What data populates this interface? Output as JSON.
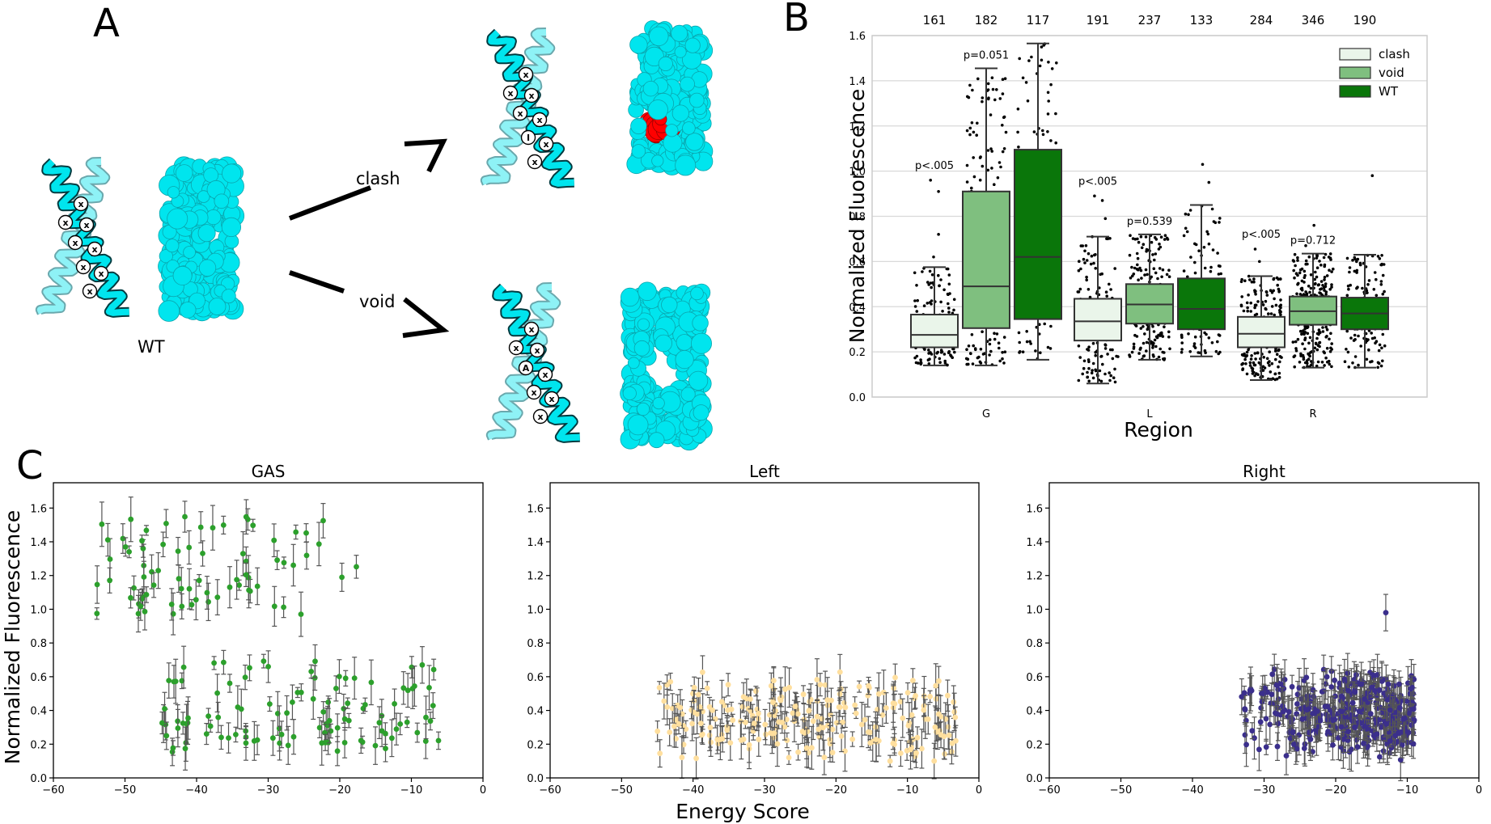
{
  "panel_letters": [
    "A",
    "B",
    "C"
  ],
  "panel_a": {
    "wt_label": "WT",
    "clash_label": "clash",
    "void_label": "void",
    "marker_text": "x",
    "clash_mutation_text": "I",
    "void_mutation_text": "A",
    "colors": {
      "helix": "#00e5ee",
      "helix_light": "#8ef2f6",
      "mutation": "#ff0000"
    }
  },
  "chart_data": [
    {
      "id": "B",
      "type": "box",
      "xlabel": "Region",
      "ylabel": "Normalized Fluorescence",
      "ylim": [
        0,
        1.6
      ],
      "yticks": [
        "0.0",
        "0.2",
        "0.4",
        "0.6",
        "0.8",
        "1.0",
        "1.2",
        "1.4",
        "1.6"
      ],
      "grid": true,
      "legend_position": "top-right",
      "categories": [
        "G",
        "L",
        "R"
      ],
      "series": [
        {
          "name": "clash",
          "color": "#eaf5ea"
        },
        {
          "name": "void",
          "color": "#7fbf7f"
        },
        {
          "name": "WT",
          "color": "#0a760a"
        }
      ],
      "counts": [
        [
          "161",
          "182",
          "117"
        ],
        [
          "191",
          "237",
          "133"
        ],
        [
          "284",
          "346",
          "190"
        ]
      ],
      "pvalues": [
        {
          "category": "G",
          "clash": "p<.005",
          "void": "p=0.051"
        },
        {
          "category": "L",
          "clash": "p<.005",
          "void": "p=0.539"
        },
        {
          "category": "R",
          "clash": "p<.005",
          "void": "p=0.712"
        }
      ],
      "boxes": [
        [
          {
            "min": 0.14,
            "q1": 0.22,
            "median": 0.275,
            "q3": 0.365,
            "max": 0.575,
            "outliers": [
              0.62,
              0.72,
              0.91,
              0.96
            ]
          },
          {
            "min": 0.14,
            "q1": 0.305,
            "median": 0.49,
            "q3": 0.91,
            "max": 1.455,
            "outliers": []
          },
          {
            "min": 0.165,
            "q1": 0.345,
            "median": 0.62,
            "q3": 1.095,
            "max": 1.565,
            "outliers": []
          }
        ],
        [
          {
            "min": 0.06,
            "q1": 0.25,
            "median": 0.335,
            "q3": 0.435,
            "max": 0.71,
            "outliers": [
              0.79,
              0.87,
              0.89
            ]
          },
          {
            "min": 0.165,
            "q1": 0.325,
            "median": 0.41,
            "q3": 0.5,
            "max": 0.72,
            "outliers": []
          },
          {
            "min": 0.18,
            "q1": 0.3,
            "median": 0.39,
            "q3": 0.525,
            "max": 0.85,
            "outliers": [
              0.95,
              1.03
            ]
          }
        ],
        [
          {
            "min": 0.075,
            "q1": 0.22,
            "median": 0.28,
            "q3": 0.355,
            "max": 0.535,
            "outliers": [
              0.6,
              0.655
            ]
          },
          {
            "min": 0.13,
            "q1": 0.32,
            "median": 0.38,
            "q3": 0.445,
            "max": 0.635,
            "outliers": [
              0.67,
              0.76
            ]
          },
          {
            "min": 0.13,
            "q1": 0.3,
            "median": 0.37,
            "q3": 0.44,
            "max": 0.63,
            "outliers": [
              0.98
            ]
          }
        ]
      ]
    },
    {
      "id": "C-GAS",
      "type": "scatter",
      "title": "GAS",
      "xlim": [
        -60,
        0
      ],
      "ylim": [
        0,
        1.75
      ],
      "xticks": [
        "−60",
        "−50",
        "−40",
        "−30",
        "−20",
        "−10",
        "0"
      ],
      "yticks": [
        "0.0",
        "0.2",
        "0.4",
        "0.6",
        "0.8",
        "1.0",
        "1.2",
        "1.4",
        "1.6"
      ],
      "color": "#2ca02c",
      "error_bars": true,
      "x_range": [
        -55,
        -6
      ],
      "y_clusters": [
        [
          0.95,
          1.55
        ],
        [
          0.15,
          0.7
        ]
      ]
    },
    {
      "id": "C-Left",
      "type": "scatter",
      "title": "Left",
      "xlim": [
        -60,
        0
      ],
      "ylim": [
        0,
        1.75
      ],
      "xticks": [
        "−60",
        "−50",
        "−40",
        "−30",
        "−20",
        "−10",
        "0"
      ],
      "yticks": [
        "0.0",
        "0.2",
        "0.4",
        "0.6",
        "0.8",
        "1.0",
        "1.2",
        "1.4",
        "1.6"
      ],
      "color": "#ffdf9e",
      "error_bars": true,
      "x_range": [
        -45,
        -3
      ],
      "y_range": [
        0.08,
        0.65
      ]
    },
    {
      "id": "C-Right",
      "type": "scatter",
      "title": "Right",
      "xlim": [
        -60,
        0
      ],
      "ylim": [
        0,
        1.75
      ],
      "xticks": [
        "−60",
        "−50",
        "−40",
        "−30",
        "−20",
        "−10",
        "0"
      ],
      "yticks": [
        "0.0",
        "0.2",
        "0.4",
        "0.6",
        "0.8",
        "1.0",
        "1.2",
        "1.4",
        "1.6"
      ],
      "color": "#3b2f8c",
      "error_bars": true,
      "x_range": [
        -34,
        -9
      ],
      "y_range": [
        0.1,
        0.67
      ],
      "outlier_point": [
        -13,
        0.98
      ]
    }
  ],
  "panel_c": {
    "xlabel": "Energy Score",
    "ylabel": "Normalized Fluorescence"
  }
}
